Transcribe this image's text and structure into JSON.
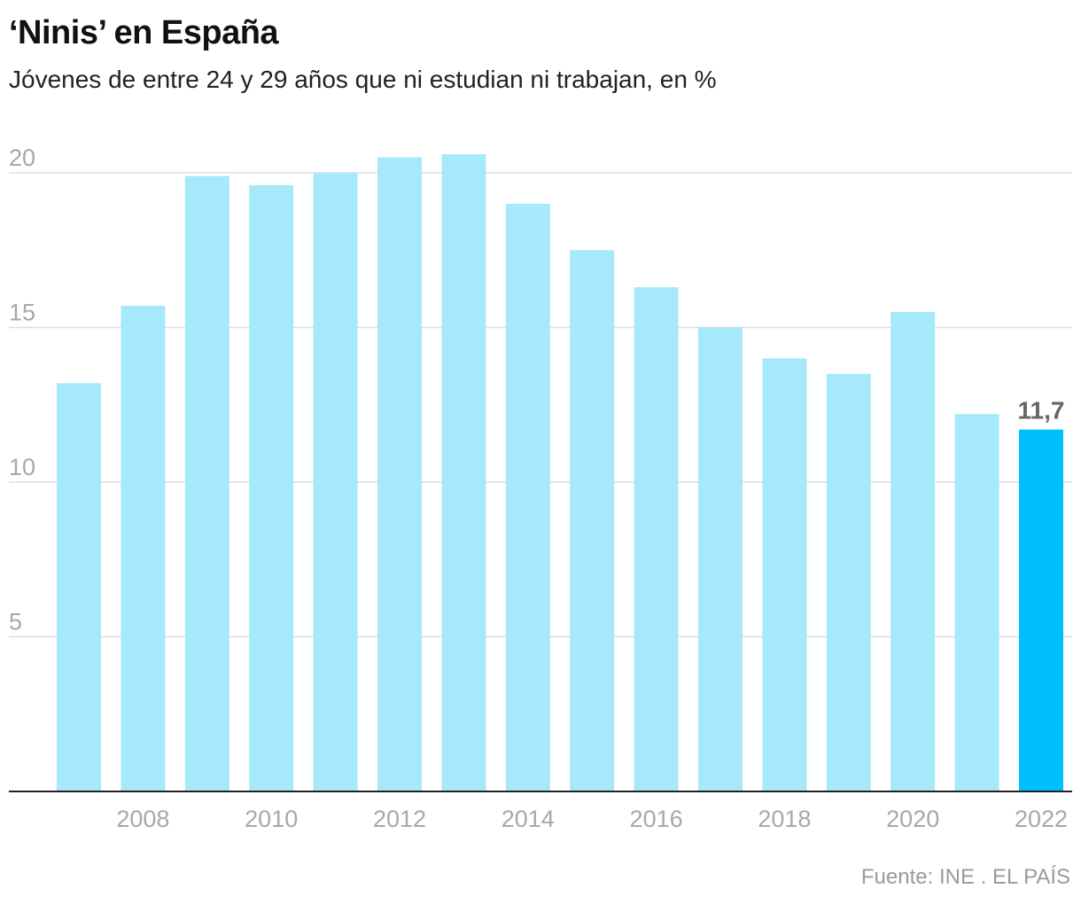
{
  "title": "‘Ninis’ en España",
  "subtitle": "Jóvenes de entre 24 y 29 años que ni estudian ni trabajan, en %",
  "source": "Fuente: INE . EL PAÍS",
  "colors": {
    "bar": "#a6e8fc",
    "highlight": "#00bfff",
    "label": "#666666",
    "tick": "#a8a8a8",
    "grid": "#dddddd",
    "axis": "#222222"
  },
  "chart_data": {
    "type": "bar",
    "title": "‘Ninis’ en España",
    "subtitle": "Jóvenes de entre 24 y 29 años que ni estudian ni trabajan, en %",
    "xlabel": "",
    "ylabel": "",
    "x": [
      2007,
      2008,
      2009,
      2010,
      2011,
      2012,
      2013,
      2014,
      2015,
      2016,
      2017,
      2018,
      2019,
      2020,
      2021,
      2022
    ],
    "values": [
      13.2,
      15.7,
      19.9,
      19.6,
      20.0,
      20.5,
      20.6,
      19.0,
      17.5,
      16.3,
      15.0,
      14.0,
      13.5,
      15.5,
      12.2,
      11.7
    ],
    "x_ticks": [
      "2008",
      "2010",
      "2012",
      "2014",
      "2016",
      "2018",
      "2020",
      "2022"
    ],
    "y_ticks": [
      5,
      10,
      15,
      20
    ],
    "y_tick_labels": [
      "5",
      "10",
      "15",
      "20"
    ],
    "ylim": [
      0,
      20
    ],
    "grid": true,
    "highlight": {
      "x": 2022,
      "label": "11,7"
    }
  }
}
